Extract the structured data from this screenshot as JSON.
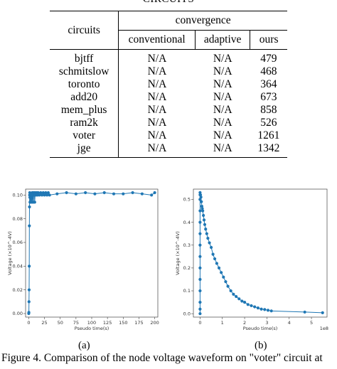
{
  "page": {
    "caption_top": "CIRCUITS"
  },
  "table": {
    "col_header": "circuits",
    "group_header": "convergence",
    "sub_headers": [
      "conventional",
      "adaptive",
      "ours"
    ],
    "rows": [
      {
        "name": "bjtff",
        "conventional": "N/A",
        "adaptive": "N/A",
        "ours": "479"
      },
      {
        "name": "schmitslow",
        "conventional": "N/A",
        "adaptive": "N/A",
        "ours": "468"
      },
      {
        "name": "toronto",
        "conventional": "N/A",
        "adaptive": "N/A",
        "ours": "364"
      },
      {
        "name": "add20",
        "conventional": "N/A",
        "adaptive": "N/A",
        "ours": "673"
      },
      {
        "name": "mem_plus",
        "conventional": "N/A",
        "adaptive": "N/A",
        "ours": "858"
      },
      {
        "name": "ram2k",
        "conventional": "N/A",
        "adaptive": "N/A",
        "ours": "526"
      },
      {
        "name": "voter",
        "conventional": "N/A",
        "adaptive": "N/A",
        "ours": "1261"
      },
      {
        "name": "jge",
        "conventional": "N/A",
        "adaptive": "N/A",
        "ours": "1342"
      }
    ]
  },
  "figure": {
    "caption": "Figure 4. Comparison of the node voltage waveform on \"voter\" circuit at",
    "subcaption_a": "(a)",
    "subcaption_b": "(b)"
  },
  "chart_data": [
    {
      "type": "line",
      "xlabel": "Pseudo time(s)",
      "ylabel": "Voltage (×10^-4V)",
      "xlim": [
        -5,
        205
      ],
      "ylim": [
        -0.003,
        0.105
      ],
      "xticks": [
        0,
        25,
        50,
        75,
        100,
        125,
        150,
        175,
        200
      ],
      "yticks": [
        0.0,
        0.02,
        0.04,
        0.06,
        0.08,
        0.1
      ],
      "ytick_labels": [
        "0.00",
        "0.02",
        "0.04",
        "0.06",
        "0.08",
        "0.10"
      ],
      "line_color": "#1f77b4",
      "series": [
        {
          "x": [
            0,
            0.2,
            0.4,
            0.6,
            0.8,
            1.0,
            1.2,
            1.4,
            1.6,
            1.8,
            2.0,
            2.5,
            3,
            3.5,
            4,
            4.5,
            5,
            5.5,
            6,
            6.5,
            7,
            7.5,
            8,
            8.5,
            9,
            9.5,
            10,
            11,
            12,
            13,
            14,
            15,
            17,
            19,
            21,
            23,
            25,
            27,
            29,
            31,
            33,
            45,
            60,
            75,
            90,
            105,
            120,
            135,
            150,
            165,
            180,
            195,
            200
          ],
          "y": [
            0.0,
            0.001,
            0.01,
            0.02,
            0.04,
            0.074,
            0.09,
            0.1,
            0.102,
            0.098,
            0.094,
            0.1,
            0.094,
            0.1,
            0.1,
            0.094,
            0.1,
            0.102,
            0.094,
            0.102,
            0.1,
            0.094,
            0.102,
            0.1,
            0.102,
            0.094,
            0.1,
            0.102,
            0.1,
            0.102,
            0.1,
            0.102,
            0.1,
            0.102,
            0.1,
            0.102,
            0.1,
            0.102,
            0.1,
            0.102,
            0.1,
            0.101,
            0.102,
            0.101,
            0.102,
            0.101,
            0.102,
            0.101,
            0.101,
            0.102,
            0.101,
            0.1,
            0.102
          ]
        }
      ]
    },
    {
      "type": "line",
      "xlabel": "Pseudo time(s)",
      "ylabel": "Voltage (×10^-4V)",
      "x_multiplier_label": "1e8",
      "xlim": [
        -0.3,
        5.7
      ],
      "ylim": [
        -0.015,
        0.545
      ],
      "xticks": [
        0,
        1,
        2,
        3,
        4,
        5
      ],
      "yticks": [
        0.0,
        0.1,
        0.2,
        0.3,
        0.4,
        0.5
      ],
      "ytick_labels": [
        "0.0",
        "0.1",
        "0.2",
        "0.3",
        "0.4",
        "0.5"
      ],
      "line_color": "#1f77b4",
      "series": [
        {
          "x": [
            0,
            0,
            0,
            0,
            0,
            0,
            0,
            0,
            0,
            0,
            0,
            0,
            0,
            0,
            0,
            0.02,
            0.04,
            0.06,
            0.08,
            0.1,
            0.12,
            0.15,
            0.18,
            0.21,
            0.25,
            0.3,
            0.35,
            0.42,
            0.5,
            0.58,
            0.66,
            0.75,
            0.85,
            0.95,
            1.05,
            1.15,
            1.25,
            1.38,
            1.5,
            1.62,
            1.75,
            1.88,
            2.0,
            2.15,
            2.3,
            2.45,
            2.6,
            2.75,
            2.9,
            3.05,
            3.2,
            4.7,
            5.5
          ],
          "y": [
            0.0,
            0.02,
            0.05,
            0.1,
            0.15,
            0.2,
            0.25,
            0.3,
            0.35,
            0.4,
            0.45,
            0.5,
            0.53,
            0.52,
            0.5,
            0.52,
            0.51,
            0.49,
            0.47,
            0.46,
            0.45,
            0.43,
            0.41,
            0.39,
            0.37,
            0.35,
            0.33,
            0.31,
            0.29,
            0.26,
            0.24,
            0.22,
            0.2,
            0.18,
            0.16,
            0.14,
            0.12,
            0.1,
            0.085,
            0.075,
            0.065,
            0.055,
            0.05,
            0.04,
            0.035,
            0.03,
            0.025,
            0.02,
            0.018,
            0.015,
            0.012,
            0.007,
            0.004
          ]
        }
      ]
    }
  ]
}
